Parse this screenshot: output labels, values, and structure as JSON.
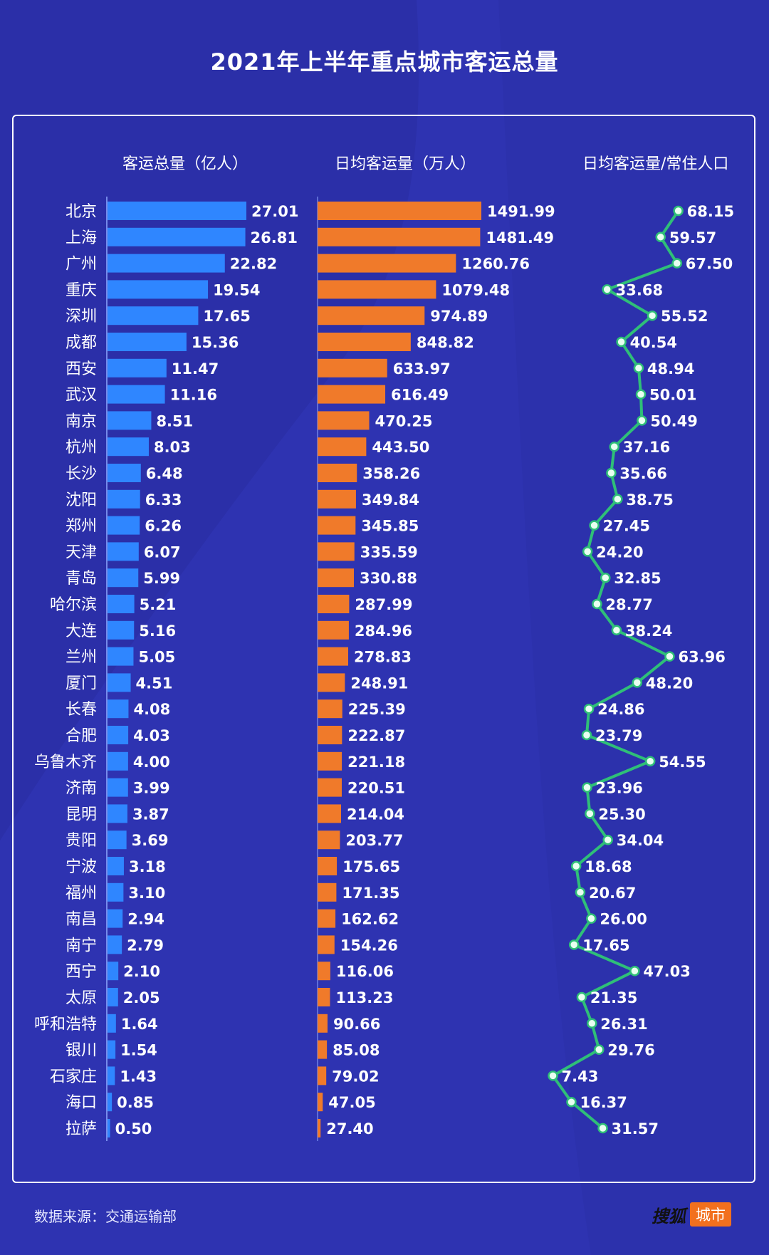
{
  "title": "2021年上半年重点城市客运总量",
  "headers": {
    "total": "客运总量（亿人）",
    "daily": "日均客运量（万人）",
    "ratio": "日均客运量/常住人口"
  },
  "footer": {
    "source": "数据来源：交通运输部",
    "logo_text_a": "搜狐",
    "logo_text_b": "城市"
  },
  "colors": {
    "background": "#2b2fa8",
    "bar_total": "#2f86ff",
    "bar_daily": "#f07a2a",
    "line": "#2fbf78",
    "marker_fill": "#e8fff1"
  },
  "chart_data": {
    "type": "bar",
    "categories": [
      "北京",
      "上海",
      "广州",
      "重庆",
      "深圳",
      "成都",
      "西安",
      "武汉",
      "南京",
      "杭州",
      "长沙",
      "沈阳",
      "郑州",
      "天津",
      "青岛",
      "哈尔滨",
      "大连",
      "兰州",
      "厦门",
      "长春",
      "合肥",
      "乌鲁木齐",
      "济南",
      "昆明",
      "贵阳",
      "宁波",
      "福州",
      "南昌",
      "南宁",
      "西宁",
      "太原",
      "呼和浩特",
      "银川",
      "石家庄",
      "海口",
      "拉萨"
    ],
    "series": [
      {
        "name": "客运总量（亿人）",
        "type": "bar",
        "values": [
          "27.01",
          "26.81",
          "22.82",
          "19.54",
          "17.65",
          "15.36",
          "11.47",
          "11.16",
          "8.51",
          "8.03",
          "6.48",
          "6.33",
          "6.26",
          "6.07",
          "5.99",
          "5.21",
          "5.16",
          "5.05",
          "4.51",
          "4.08",
          "4.03",
          "4.00",
          "3.99",
          "3.87",
          "3.69",
          "3.18",
          "3.10",
          "2.94",
          "2.79",
          "2.10",
          "2.05",
          "1.64",
          "1.54",
          "1.43",
          "0.85",
          "0.50"
        ]
      },
      {
        "name": "日均客运量（万人）",
        "type": "bar",
        "values": [
          "1491.99",
          "1481.49",
          "1260.76",
          "1079.48",
          "974.89",
          "848.82",
          "633.97",
          "616.49",
          "470.25",
          "443.50",
          "358.26",
          "349.84",
          "345.85",
          "335.59",
          "330.88",
          "287.99",
          "284.96",
          "278.83",
          "248.91",
          "225.39",
          "222.87",
          "221.18",
          "220.51",
          "214.04",
          "203.77",
          "175.65",
          "171.35",
          "162.62",
          "154.26",
          "116.06",
          "113.23",
          "90.66",
          "85.08",
          "79.02",
          "47.05",
          "27.40"
        ]
      },
      {
        "name": "日均客运量/常住人口",
        "type": "line",
        "values": [
          "68.15",
          "59.57",
          "67.50",
          "33.68",
          "55.52",
          "40.54",
          "48.94",
          "50.01",
          "50.49",
          "37.16",
          "35.66",
          "38.75",
          "27.45",
          "24.20",
          "32.85",
          "28.77",
          "38.24",
          "63.96",
          "48.20",
          "24.86",
          "23.79",
          "54.55",
          "23.96",
          "25.30",
          "34.04",
          "18.68",
          "20.67",
          "26.00",
          "17.65",
          "47.03",
          "21.35",
          "26.31",
          "29.76",
          "7.43",
          "16.37",
          "31.57"
        ]
      }
    ],
    "legend": "none",
    "grid": false
  }
}
